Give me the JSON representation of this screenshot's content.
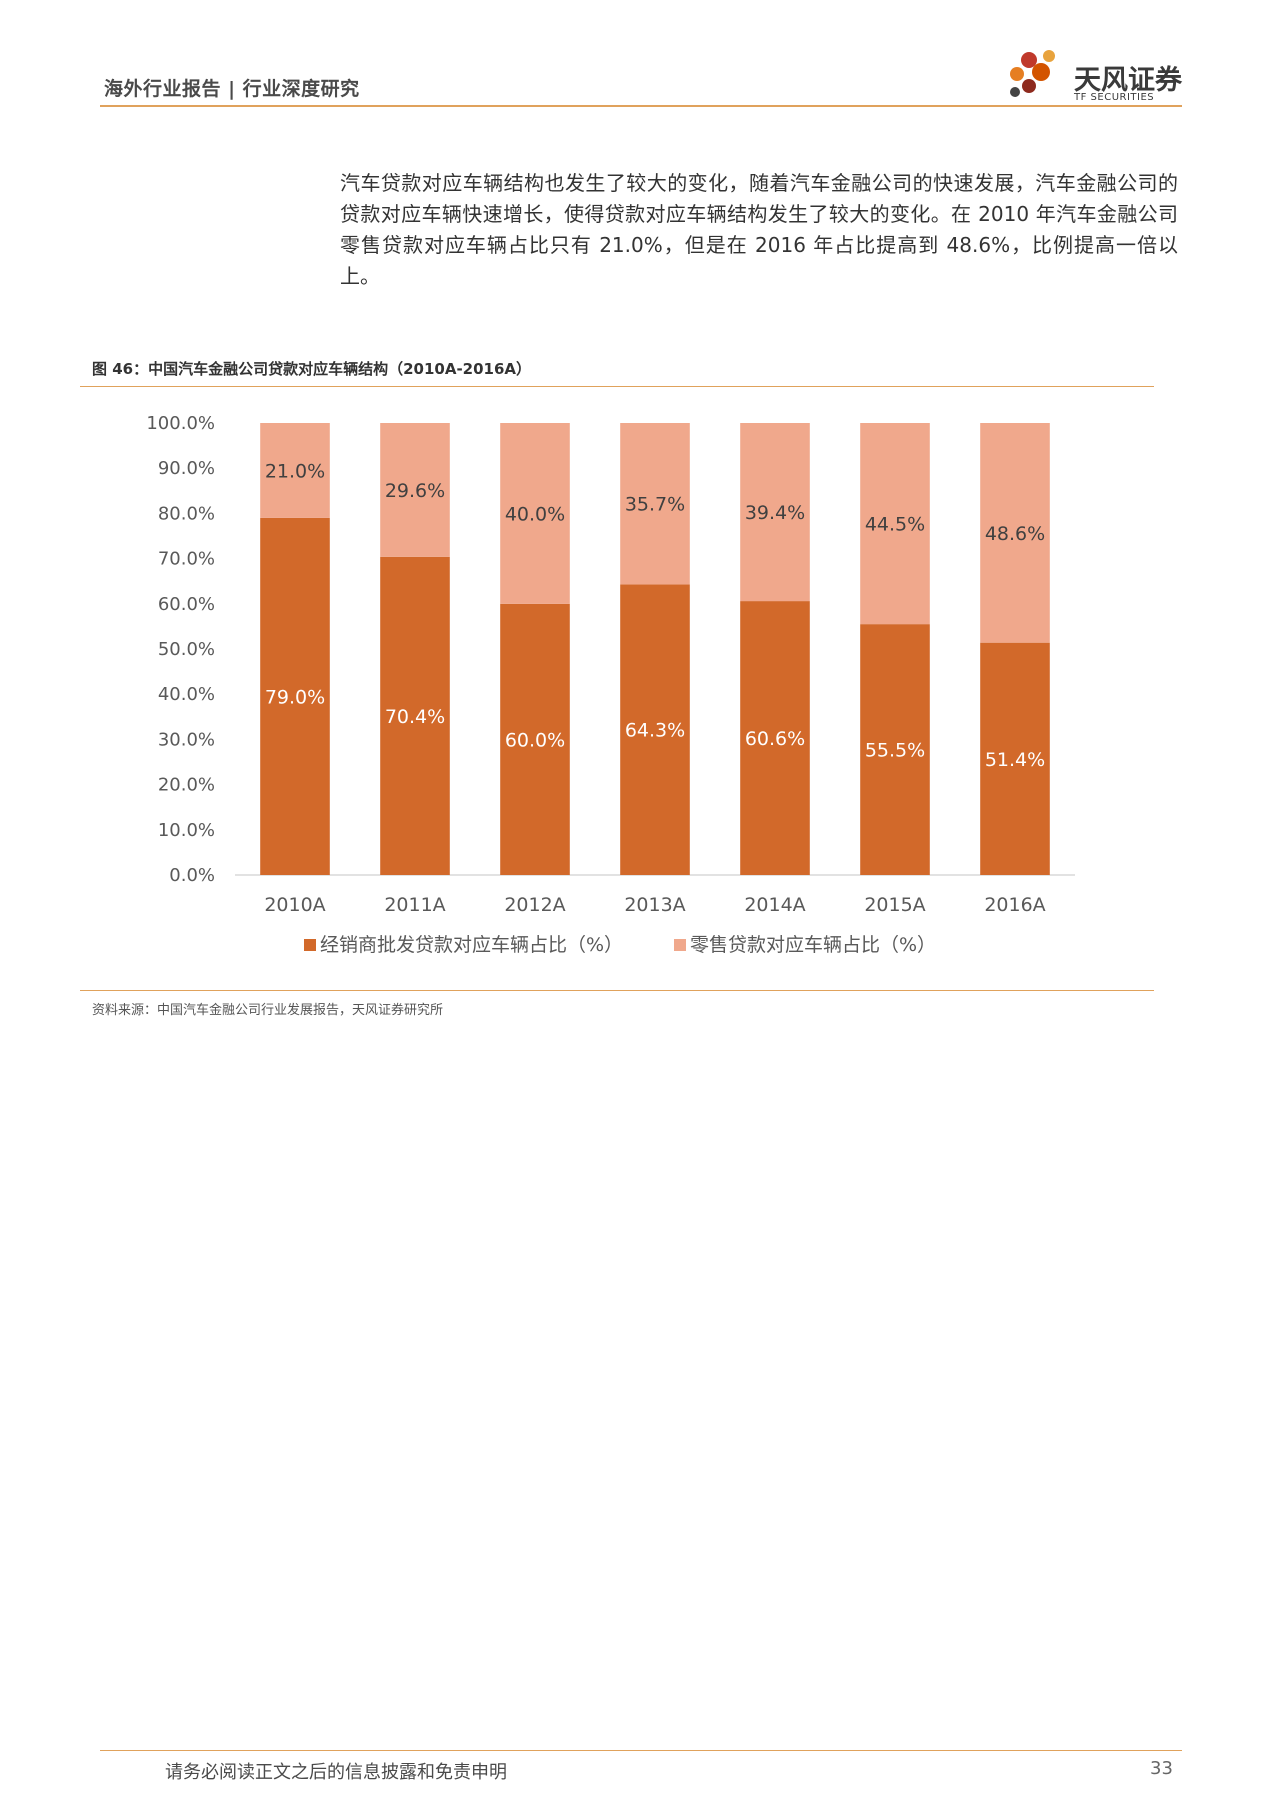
{
  "header": {
    "title": "海外行业报告 | 行业深度研究",
    "logo_name": "天风证券",
    "logo_sub": "TF SECURITIES"
  },
  "paragraph": "汽车贷款对应车辆结构也发生了较大的变化，随着汽车金融公司的快速发展，汽车金融公司的贷款对应车辆快速增长，使得贷款对应车辆结构发生了较大的变化。在 2010 年汽车金融公司零售贷款对应车辆占比只有 21.0%，但是在 2016 年占比提高到 48.6%，比例提高一倍以上。",
  "figure": {
    "title": "图 46：中国汽车金融公司贷款对应车辆结构（2010A-2016A）",
    "source": "资料来源：中国汽车金融公司行业发展报告，天风证券研究所"
  },
  "chart_data": {
    "type": "bar",
    "stacked": true,
    "categories": [
      "2010A",
      "2011A",
      "2012A",
      "2013A",
      "2014A",
      "2015A",
      "2016A"
    ],
    "series": [
      {
        "name": "经销商批发贷款对应车辆占比（%）",
        "values": [
          79.0,
          70.4,
          60.0,
          64.3,
          60.6,
          55.5,
          51.4
        ],
        "labels": [
          "79.0%",
          "70.4%",
          "60.0%",
          "64.3%",
          "60.6%",
          "55.5%",
          "51.4%"
        ],
        "color": "#d2692a"
      },
      {
        "name": "零售贷款对应车辆占比（%）",
        "values": [
          21.0,
          29.6,
          40.0,
          35.7,
          39.4,
          44.5,
          48.6
        ],
        "labels": [
          "21.0%",
          "29.6%",
          "40.0%",
          "35.7%",
          "39.4%",
          "44.5%",
          "48.6%"
        ],
        "color": "#f0a88c"
      }
    ],
    "y_ticks": [
      "0.0%",
      "10.0%",
      "20.0%",
      "30.0%",
      "40.0%",
      "50.0%",
      "60.0%",
      "70.0%",
      "80.0%",
      "90.0%",
      "100.0%"
    ],
    "ylim": [
      0,
      100
    ],
    "grid": false,
    "legend_position": "bottom"
  },
  "footer": {
    "disclaimer": "请务必阅读正文之后的信息披露和免责申明",
    "page": "33"
  }
}
